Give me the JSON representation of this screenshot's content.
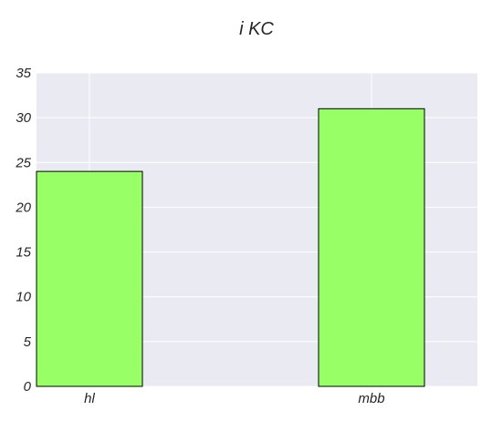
{
  "chart_data": {
    "type": "bar",
    "title": "i KC",
    "xlabel": "",
    "ylabel": "",
    "categories": [
      "hl",
      "mbb"
    ],
    "values": [
      24,
      31
    ],
    "ylim": [
      0,
      35
    ],
    "yticks": [
      0,
      5,
      10,
      15,
      20,
      25,
      30,
      35
    ],
    "grid": true,
    "legend": "none",
    "colors": {
      "bar": "#99ff66",
      "bar_edge": "#000000",
      "plot_background": "#eaeaf2",
      "grid": "#ffffff",
      "text": "#262626"
    }
  }
}
